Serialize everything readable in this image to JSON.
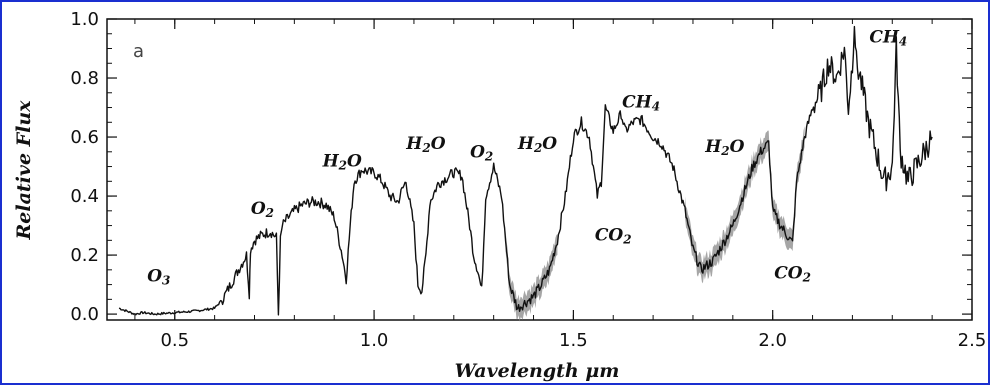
{
  "chart_data": {
    "type": "line",
    "panel_label": "a",
    "xlabel": "Wavelength μm",
    "ylabel": "Relative Flux",
    "xlim": [
      0.33,
      2.5
    ],
    "ylim": [
      -0.02,
      1.0
    ],
    "xticks": [
      0.5,
      1.0,
      1.5,
      2.0,
      2.5
    ],
    "xtick_labels": [
      "0.5",
      "1.0",
      "1.5",
      "2.0",
      "2.5"
    ],
    "yticks": [
      0.0,
      0.2,
      0.4,
      0.6,
      0.8,
      1.0
    ],
    "ytick_labels": [
      "0.0",
      "0.2",
      "0.4",
      "0.6",
      "0.8",
      "1.0"
    ],
    "grid": false,
    "colors": {
      "line": "#111111",
      "noise": "#888888"
    },
    "series": [
      {
        "x": [
          0.36,
          0.38,
          0.4,
          0.42,
          0.45,
          0.5,
          0.55,
          0.6,
          0.62,
          0.64,
          0.66,
          0.68,
          0.687,
          0.69,
          0.7,
          0.72,
          0.74,
          0.755,
          0.76,
          0.765,
          0.77,
          0.78,
          0.8,
          0.82,
          0.84,
          0.86,
          0.88,
          0.9,
          0.92,
          0.93,
          0.94,
          0.95,
          0.97,
          0.99,
          1.0,
          1.02,
          1.04,
          1.06,
          1.07,
          1.08,
          1.1,
          1.11,
          1.12,
          1.13,
          1.14,
          1.16,
          1.18,
          1.2,
          1.22,
          1.24,
          1.25,
          1.26,
          1.27,
          1.28,
          1.3,
          1.32,
          1.34,
          1.36,
          1.38,
          1.4,
          1.42,
          1.44,
          1.46,
          1.48,
          1.5,
          1.52,
          1.54,
          1.56,
          1.57,
          1.58,
          1.6,
          1.62,
          1.63,
          1.65,
          1.67,
          1.7,
          1.72,
          1.75,
          1.78,
          1.8,
          1.82,
          1.85,
          1.88,
          1.9,
          1.92,
          1.95,
          1.97,
          1.99,
          2.0,
          2.02,
          2.04,
          2.05,
          2.06,
          2.08,
          2.1,
          2.12,
          2.14,
          2.16,
          2.18,
          2.19,
          2.2,
          2.205,
          2.21,
          2.22,
          2.24,
          2.26,
          2.28,
          2.3,
          2.31,
          2.32,
          2.34,
          2.36,
          2.38,
          2.4
        ],
        "y": [
          0.02,
          0.01,
          0.0,
          0.005,
          0.0,
          0.005,
          0.01,
          0.02,
          0.05,
          0.1,
          0.15,
          0.2,
          0.07,
          0.22,
          0.25,
          0.27,
          0.28,
          0.26,
          0.0,
          0.25,
          0.3,
          0.32,
          0.35,
          0.37,
          0.38,
          0.38,
          0.37,
          0.33,
          0.2,
          0.12,
          0.3,
          0.45,
          0.49,
          0.48,
          0.48,
          0.45,
          0.4,
          0.38,
          0.42,
          0.45,
          0.3,
          0.1,
          0.08,
          0.2,
          0.38,
          0.44,
          0.46,
          0.48,
          0.47,
          0.3,
          0.2,
          0.15,
          0.08,
          0.4,
          0.5,
          0.4,
          0.1,
          0.02,
          0.04,
          0.06,
          0.1,
          0.15,
          0.25,
          0.4,
          0.6,
          0.65,
          0.6,
          0.4,
          0.45,
          0.7,
          0.62,
          0.68,
          0.62,
          0.65,
          0.66,
          0.6,
          0.58,
          0.5,
          0.35,
          0.22,
          0.15,
          0.18,
          0.25,
          0.3,
          0.38,
          0.5,
          0.55,
          0.58,
          0.35,
          0.3,
          0.26,
          0.24,
          0.45,
          0.6,
          0.7,
          0.75,
          0.85,
          0.8,
          0.9,
          0.7,
          0.85,
          1.0,
          0.85,
          0.8,
          0.65,
          0.55,
          0.45,
          0.5,
          0.9,
          0.55,
          0.45,
          0.5,
          0.55,
          0.6
        ]
      }
    ],
    "annotations": [
      {
        "text": "O3",
        "x": 0.46,
        "y": 0.11
      },
      {
        "text": "O2",
        "x": 0.72,
        "y": 0.34
      },
      {
        "text": "H2O",
        "x": 0.92,
        "y": 0.5
      },
      {
        "text": "H2O",
        "x": 1.13,
        "y": 0.56
      },
      {
        "text": "O2",
        "x": 1.27,
        "y": 0.53
      },
      {
        "text": "H2O",
        "x": 1.41,
        "y": 0.56
      },
      {
        "text": "CH4",
        "x": 1.67,
        "y": 0.7
      },
      {
        "text": "CO2",
        "x": 1.6,
        "y": 0.25
      },
      {
        "text": "H2O",
        "x": 1.88,
        "y": 0.55
      },
      {
        "text": "CO2",
        "x": 2.05,
        "y": 0.12
      },
      {
        "text": "CH4",
        "x": 2.29,
        "y": 0.92
      }
    ]
  }
}
